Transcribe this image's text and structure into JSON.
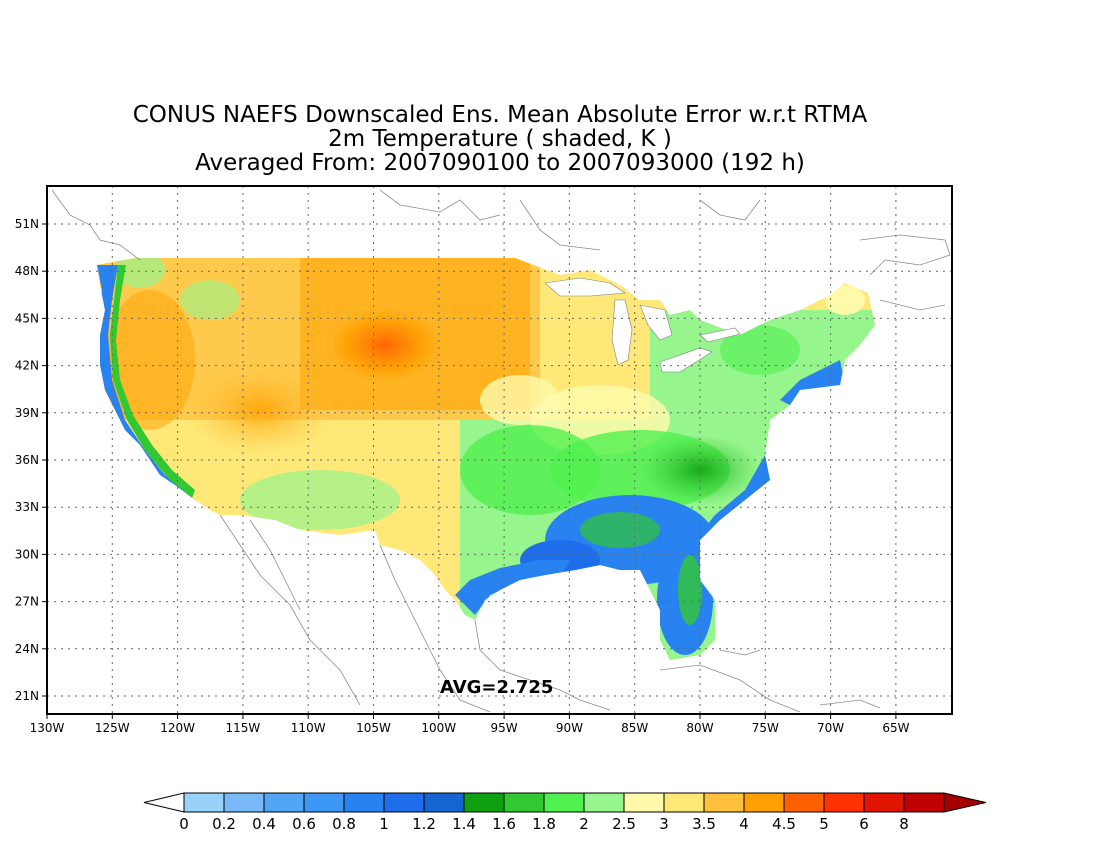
{
  "title": {
    "line1": "CONUS NAEFS Downscaled Ens. Mean Absolute Error w.r.t RTMA",
    "line2": "2m Temperature ( shaded, K )",
    "line3": "Averaged From: 2007090100 to 2007093000 (192 h)"
  },
  "annotation": {
    "avg": "AVG=2.725"
  },
  "axes": {
    "lon_labels": [
      "130W",
      "125W",
      "120W",
      "115W",
      "110W",
      "105W",
      "100W",
      "95W",
      "90W",
      "85W",
      "80W",
      "75W",
      "70W",
      "65W"
    ],
    "lat_labels": [
      "51N",
      "48N",
      "45N",
      "42N",
      "39N",
      "36N",
      "33N",
      "30N",
      "27N",
      "24N",
      "21N"
    ],
    "grid": "dotted"
  },
  "colorbar": {
    "labels": [
      "0",
      "0.2",
      "0.4",
      "0.6",
      "0.8",
      "1",
      "1.2",
      "1.4",
      "1.6",
      "1.8",
      "2",
      "2.5",
      "3",
      "3.5",
      "4",
      "4.5",
      "5",
      "6",
      "8"
    ],
    "colors": [
      "#96d2fa",
      "#78b9fa",
      "#50a5f5",
      "#3c97f5",
      "#2882f0",
      "#1e6eeb",
      "#1464d2",
      "#0fa00f",
      "#32c832",
      "#50f050",
      "#96f58c",
      "#fffaaa",
      "#ffe878",
      "#ffc03c",
      "#ffa000",
      "#ff6000",
      "#ff3200",
      "#e11400",
      "#c00000"
    ],
    "under_color": "#ffffff",
    "over_color": "#a50000"
  },
  "colors": {
    "coast_blue": "#2882f0",
    "coast_green": "#32c832",
    "warm_yellow": "#ffe878",
    "warm_orange": "#ffa000",
    "hot_red": "#ff6000"
  }
}
